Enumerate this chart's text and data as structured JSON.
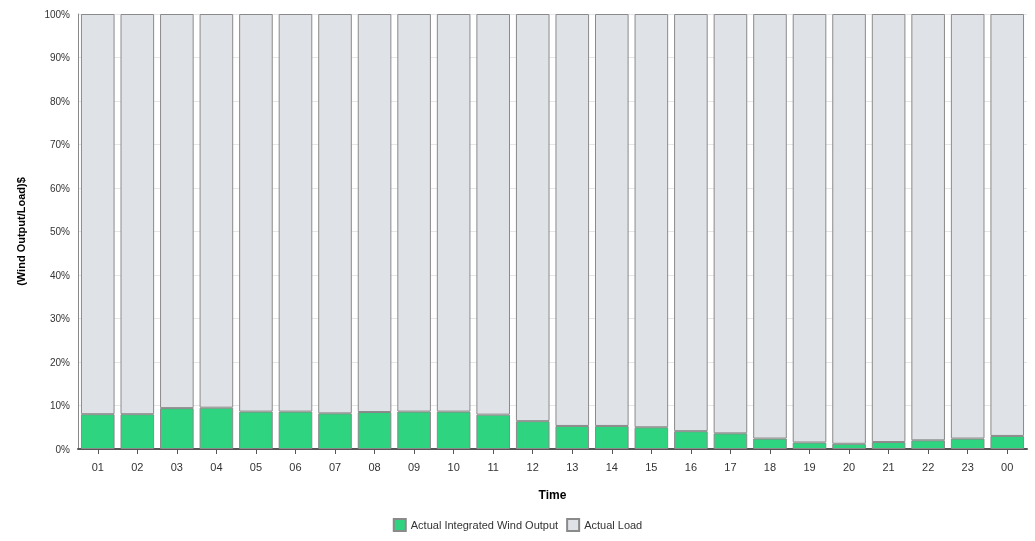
{
  "chart_data": {
    "type": "bar",
    "stacked": true,
    "xlabel": "Time",
    "ylabel": "(Wind Output/Load)$",
    "categories": [
      "01",
      "02",
      "03",
      "04",
      "05",
      "06",
      "07",
      "08",
      "09",
      "10",
      "11",
      "12",
      "13",
      "14",
      "15",
      "16",
      "17",
      "18",
      "19",
      "20",
      "21",
      "22",
      "23",
      "00"
    ],
    "series": [
      {
        "name": "Actual Integrated Wind Output",
        "color": "#2ed47f",
        "values": [
          8.0,
          8.0,
          9.4,
          9.5,
          8.6,
          8.6,
          8.2,
          8.5,
          8.6,
          8.6,
          7.9,
          6.4,
          5.3,
          5.3,
          5.0,
          4.1,
          3.6,
          2.4,
          1.5,
          1.2,
          1.6,
          2.0,
          2.4,
          3.0
        ]
      },
      {
        "name": "Actual Load",
        "color": "#dfe2e6",
        "values": [
          92.0,
          92.0,
          90.6,
          90.5,
          91.4,
          91.4,
          91.8,
          91.5,
          91.4,
          91.4,
          92.1,
          93.6,
          94.7,
          94.7,
          95.0,
          95.9,
          96.4,
          97.6,
          98.5,
          98.8,
          98.4,
          98.0,
          97.6,
          97.0
        ]
      }
    ],
    "ylim": [
      0,
      100
    ],
    "yticks": [
      {
        "value": 0,
        "label": "0%"
      },
      {
        "value": 10,
        "label": "10%"
      },
      {
        "value": 20,
        "label": "20%"
      },
      {
        "value": 30,
        "label": "30%"
      },
      {
        "value": 40,
        "label": "40%"
      },
      {
        "value": 50,
        "label": "50%"
      },
      {
        "value": 60,
        "label": "60%"
      },
      {
        "value": 70,
        "label": "70%"
      },
      {
        "value": 80,
        "label": "80%"
      },
      {
        "value": 90,
        "label": "90%"
      },
      {
        "value": 100,
        "label": "100%"
      }
    ],
    "grid": "y",
    "legend": "bottom"
  }
}
